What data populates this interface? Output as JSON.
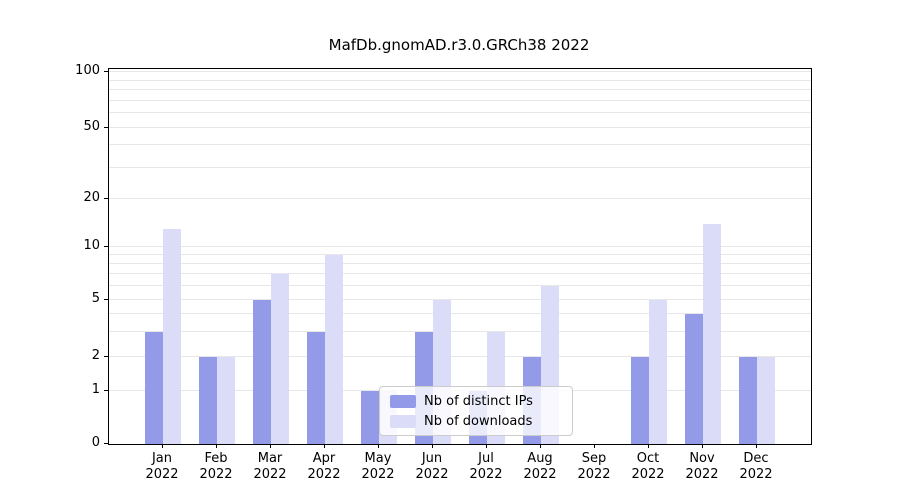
{
  "title": "MafDb.gnomAD.r3.0.GRCh38 2022",
  "colors": {
    "distinct_ips": "#939ae8",
    "downloads": "#dadcf8",
    "grid": "#e7e7e7",
    "axis": "#000000",
    "legend_border": "#cccccc"
  },
  "legend": {
    "items": [
      {
        "label": "Nb of distinct IPs",
        "color": "#939ae8"
      },
      {
        "label": "Nb of downloads",
        "color": "#dadcf8"
      }
    ]
  },
  "y_axis": {
    "tick_labels": [
      "0",
      "1",
      "2",
      "5",
      "10",
      "20",
      "50",
      "100"
    ]
  },
  "chart_data": {
    "type": "bar",
    "title": "MafDb.gnomAD.r3.0.GRCh38 2022",
    "scale": "symlog",
    "ylim": [
      0,
      100
    ],
    "yticks": [
      0,
      1,
      2,
      5,
      10,
      20,
      50,
      100
    ],
    "grid": true,
    "legend_position": "lower center",
    "categories": [
      "Jan 2022",
      "Feb 2022",
      "Mar 2022",
      "Apr 2022",
      "May 2022",
      "Jun 2022",
      "Jul 2022",
      "Aug 2022",
      "Sep 2022",
      "Oct 2022",
      "Nov 2022",
      "Dec 2022"
    ],
    "series": [
      {
        "name": "Nb of distinct IPs",
        "values": [
          3,
          2,
          5,
          3,
          1,
          3,
          1,
          2,
          0,
          2,
          4,
          2
        ]
      },
      {
        "name": "Nb of downloads",
        "values": [
          13,
          2,
          7,
          9,
          1,
          5,
          3,
          6,
          0,
          5,
          14,
          2
        ]
      }
    ]
  }
}
